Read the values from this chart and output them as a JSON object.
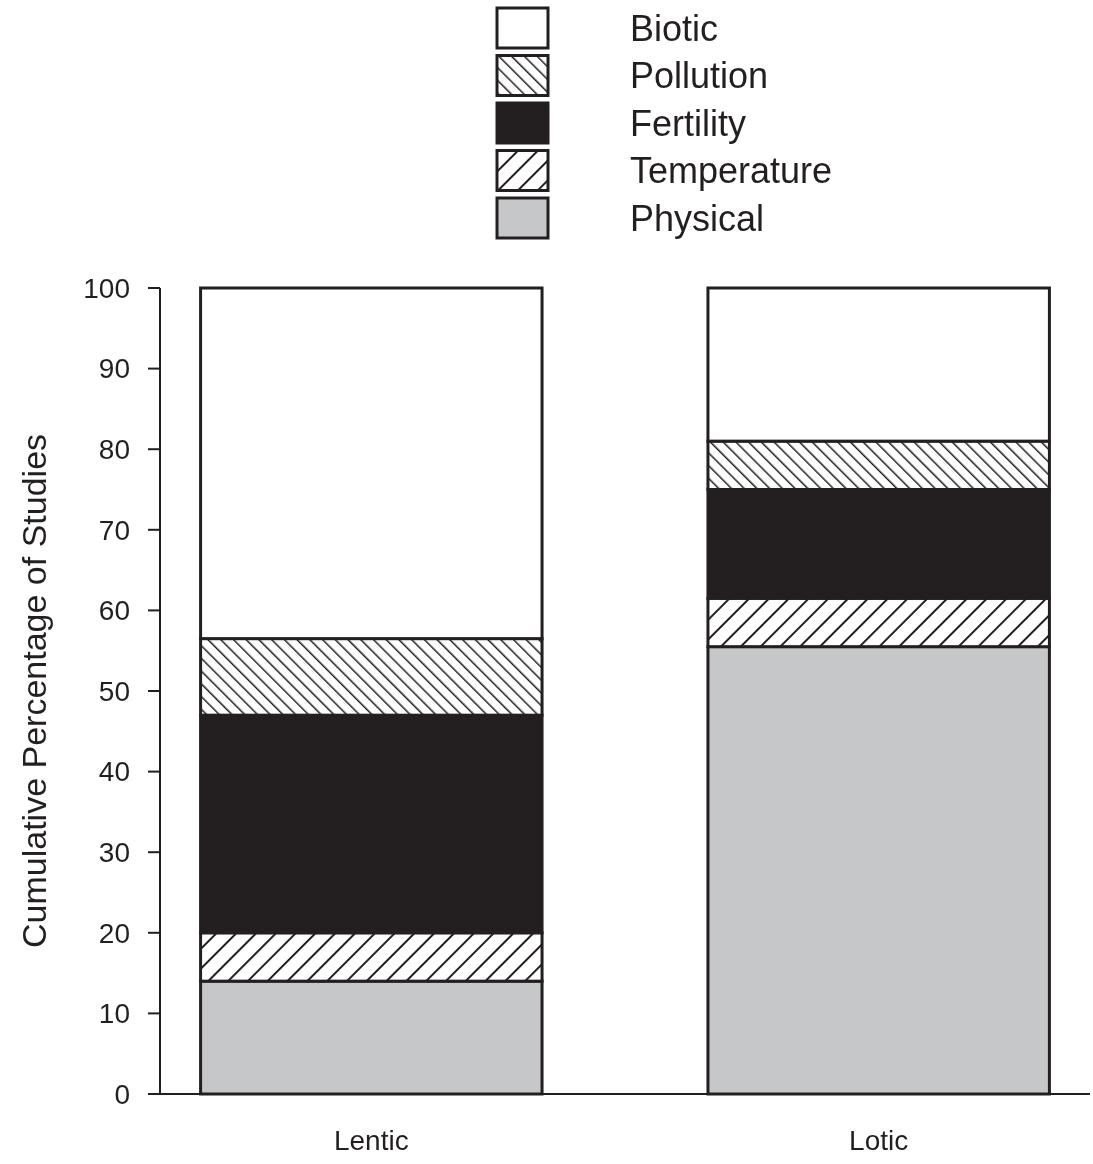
{
  "chart_data": {
    "type": "bar",
    "stacked": true,
    "ylabel": "Cumulative Percentage of Studies",
    "categories": [
      "Lentic",
      "Lotic"
    ],
    "series": [
      {
        "name": "Physical",
        "color": "#c6c7c9",
        "values": [
          14,
          55.5
        ]
      },
      {
        "name": "Temperature",
        "color": "#231f20",
        "values": [
          6,
          6
        ]
      },
      {
        "name": "Fertility",
        "color": "#231f20",
        "values": [
          27,
          13.5
        ]
      },
      {
        "name": "Pollution",
        "color": "#231f20",
        "values": [
          9.5,
          6
        ]
      },
      {
        "name": "Biotic",
        "color": "#ffffff",
        "values": [
          43.5,
          19
        ]
      }
    ],
    "ylim": [
      0,
      100
    ],
    "yticks": [
      0,
      10,
      20,
      30,
      40,
      50,
      60,
      70,
      80,
      90,
      100
    ],
    "legend": "top"
  }
}
